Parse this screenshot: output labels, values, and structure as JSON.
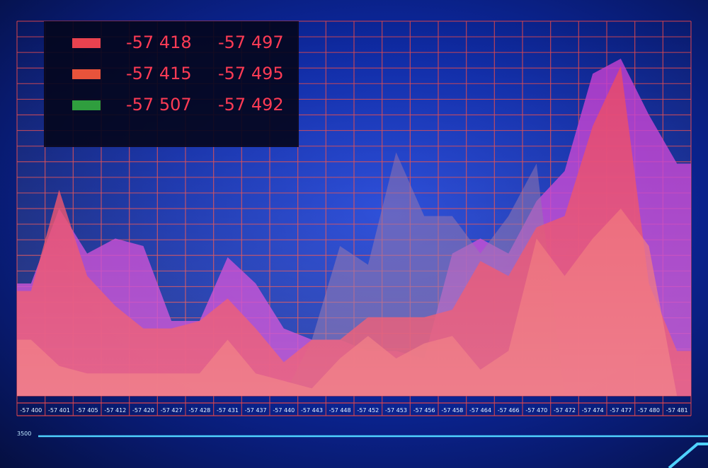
{
  "legend": [
    {
      "color": "#e8424f",
      "value_a": "-57 418",
      "value_b": "-57 497"
    },
    {
      "color": "#e8533b",
      "value_a": "-57 415",
      "value_b": "-57 495"
    },
    {
      "color": "#2f9e3e",
      "value_a": "-57 507",
      "value_b": "-57 492"
    }
  ],
  "bottom_label": "3500",
  "chart_data": {
    "type": "area",
    "categories": [
      "-57 400",
      "-57 401",
      "-57 405",
      "-57 412",
      "-57 420",
      "-57 427",
      "-57 428",
      "-57 431",
      "-57 437",
      "-57 440",
      "-57 443",
      "-57 448",
      "-57 452",
      "-57 453",
      "-57 456",
      "-57 458",
      "-57 464",
      "-57 466",
      "-57 470",
      "-57 472",
      "-57 474",
      "-57 477",
      "-57 480",
      "-57 481"
    ],
    "series": [
      {
        "color": "#c23cd0",
        "values": [
          30,
          50,
          38,
          42,
          40,
          20,
          20,
          37,
          30,
          18,
          15,
          15,
          12,
          12,
          10,
          38,
          42,
          38,
          52,
          60,
          86,
          90,
          75,
          62
        ]
      },
      {
        "color": "#8a6aa8",
        "values": [
          0,
          0,
          0,
          0,
          0,
          0,
          0,
          0,
          0,
          0,
          15,
          40,
          35,
          65,
          48,
          48,
          38,
          48,
          62,
          0,
          0,
          0,
          0,
          0
        ]
      },
      {
        "color": "#ea4663",
        "values": [
          28,
          55,
          32,
          24,
          18,
          18,
          20,
          26,
          18,
          9,
          15,
          15,
          21,
          21,
          21,
          23,
          36,
          32,
          45,
          48,
          72,
          88,
          30,
          12
        ]
      },
      {
        "color": "#ef6a72",
        "values": [
          15,
          8,
          6,
          6,
          6,
          6,
          6,
          15,
          6,
          4,
          2,
          10,
          16,
          10,
          14,
          16,
          7,
          12,
          42,
          32,
          42,
          50,
          40,
          0
        ]
      }
    ],
    "ylim": [
      0,
      100
    ],
    "grid": true,
    "legend_position": "top-left"
  }
}
